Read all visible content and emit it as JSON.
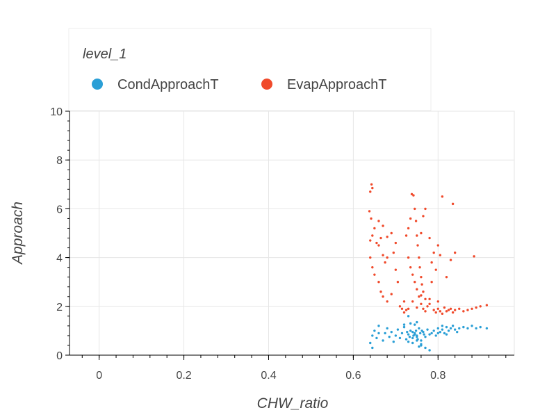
{
  "chart_data": {
    "type": "scatter",
    "title": "",
    "xlabel": "CHW_ratio",
    "ylabel": "Approach",
    "xlim": [
      -0.07,
      0.98
    ],
    "ylim": [
      0,
      10
    ],
    "xticks": [
      0,
      0.2,
      0.4,
      0.6,
      0.8
    ],
    "xtick_labels": [
      "0",
      "0.2",
      "0.4",
      "0.6",
      "0.8"
    ],
    "yticks": [
      0,
      2,
      4,
      6,
      8,
      10
    ],
    "ytick_labels": [
      "0",
      "2",
      "4",
      "6",
      "8",
      "10"
    ],
    "grid": true,
    "legend": {
      "title": "level_1",
      "placement": "top-left-outside"
    },
    "series": [
      {
        "name": "CondApproachT",
        "color": "#2a9fd6",
        "points": [
          [
            0.64,
            0.5
          ],
          [
            0.645,
            0.8
          ],
          [
            0.65,
            1.0
          ],
          [
            0.655,
            0.7
          ],
          [
            0.66,
            0.9
          ],
          [
            0.645,
            0.3
          ],
          [
            0.66,
            1.2
          ],
          [
            0.67,
            0.6
          ],
          [
            0.675,
            0.9
          ],
          [
            0.68,
            1.1
          ],
          [
            0.685,
            0.75
          ],
          [
            0.69,
            0.95
          ],
          [
            0.695,
            0.55
          ],
          [
            0.7,
            0.8
          ],
          [
            0.705,
            1.05
          ],
          [
            0.71,
            0.7
          ],
          [
            0.715,
            0.9
          ],
          [
            0.72,
            1.15
          ],
          [
            0.725,
            0.65
          ],
          [
            0.73,
            0.85
          ],
          [
            0.735,
            1.0
          ],
          [
            0.74,
            0.7
          ],
          [
            0.745,
            0.9
          ],
          [
            0.75,
            0.8
          ],
          [
            0.755,
            1.1
          ],
          [
            0.76,
            0.6
          ],
          [
            0.765,
            0.95
          ],
          [
            0.77,
            0.75
          ],
          [
            0.775,
            1.05
          ],
          [
            0.78,
            0.85
          ],
          [
            0.785,
            0.9
          ],
          [
            0.79,
            1.0
          ],
          [
            0.795,
            0.8
          ],
          [
            0.8,
            1.1
          ],
          [
            0.805,
            0.95
          ],
          [
            0.81,
            1.05
          ],
          [
            0.815,
            0.9
          ],
          [
            0.82,
            1.15
          ],
          [
            0.825,
            1.0
          ],
          [
            0.83,
            1.1
          ],
          [
            0.835,
            1.2
          ],
          [
            0.84,
            1.05
          ],
          [
            0.845,
            0.95
          ],
          [
            0.85,
            1.1
          ],
          [
            0.86,
            1.15
          ],
          [
            0.87,
            1.1
          ],
          [
            0.88,
            1.2
          ],
          [
            0.89,
            1.1
          ],
          [
            0.9,
            1.15
          ],
          [
            0.915,
            1.1
          ],
          [
            0.74,
            0.5
          ],
          [
            0.75,
            0.6
          ],
          [
            0.76,
            0.4
          ],
          [
            0.73,
            0.55
          ],
          [
            0.745,
            1.25
          ],
          [
            0.735,
            1.3
          ],
          [
            0.75,
            1.35
          ],
          [
            0.73,
            1.6
          ],
          [
            0.76,
            0.45
          ],
          [
            0.755,
            0.35
          ],
          [
            0.72,
            1.25
          ],
          [
            0.77,
            0.3
          ],
          [
            0.78,
            0.2
          ],
          [
            0.74,
            0.95
          ],
          [
            0.745,
            0.85
          ],
          [
            0.75,
            0.75
          ],
          [
            0.752,
            0.65
          ],
          [
            0.748,
            1.0
          ],
          [
            0.742,
            0.8
          ],
          [
            0.758,
            0.9
          ],
          [
            0.762,
            1.0
          ],
          [
            0.767,
            0.85
          ],
          [
            0.733,
            0.75
          ],
          [
            0.727,
            0.95
          ],
          [
            0.81,
            1.2
          ],
          [
            0.82,
            0.85
          ],
          [
            0.8,
            0.9
          ]
        ]
      },
      {
        "name": "EvapApproachT",
        "color": "#f04a2b",
        "points": [
          [
            0.643,
            7.0
          ],
          [
            0.645,
            6.85
          ],
          [
            0.64,
            6.7
          ],
          [
            0.638,
            5.9
          ],
          [
            0.642,
            5.6
          ],
          [
            0.65,
            5.2
          ],
          [
            0.645,
            4.9
          ],
          [
            0.64,
            4.7
          ],
          [
            0.655,
            4.6
          ],
          [
            0.66,
            4.5
          ],
          [
            0.665,
            4.8
          ],
          [
            0.67,
            4.1
          ],
          [
            0.675,
            3.8
          ],
          [
            0.68,
            4.0
          ],
          [
            0.64,
            4.0
          ],
          [
            0.645,
            3.6
          ],
          [
            0.65,
            3.3
          ],
          [
            0.66,
            3.0
          ],
          [
            0.665,
            2.6
          ],
          [
            0.67,
            2.4
          ],
          [
            0.68,
            2.2
          ],
          [
            0.69,
            2.5
          ],
          [
            0.695,
            4.2
          ],
          [
            0.7,
            3.5
          ],
          [
            0.705,
            3.0
          ],
          [
            0.71,
            2.0
          ],
          [
            0.715,
            1.9
          ],
          [
            0.72,
            2.2
          ],
          [
            0.725,
            4.9
          ],
          [
            0.73,
            5.2
          ],
          [
            0.735,
            5.6
          ],
          [
            0.738,
            6.6
          ],
          [
            0.742,
            6.55
          ],
          [
            0.745,
            6.0
          ],
          [
            0.748,
            5.5
          ],
          [
            0.75,
            4.9
          ],
          [
            0.752,
            4.5
          ],
          [
            0.755,
            4.0
          ],
          [
            0.757,
            3.6
          ],
          [
            0.76,
            3.2
          ],
          [
            0.762,
            2.9
          ],
          [
            0.765,
            2.6
          ],
          [
            0.77,
            2.3
          ],
          [
            0.73,
            4.0
          ],
          [
            0.735,
            3.6
          ],
          [
            0.74,
            3.3
          ],
          [
            0.745,
            3.0
          ],
          [
            0.75,
            2.7
          ],
          [
            0.755,
            2.4
          ],
          [
            0.76,
            2.1
          ],
          [
            0.765,
            1.9
          ],
          [
            0.77,
            1.8
          ],
          [
            0.775,
            2.0
          ],
          [
            0.78,
            2.3
          ],
          [
            0.785,
            3.0
          ],
          [
            0.79,
            1.85
          ],
          [
            0.795,
            1.75
          ],
          [
            0.8,
            1.9
          ],
          [
            0.805,
            1.8
          ],
          [
            0.81,
            1.7
          ],
          [
            0.815,
            1.95
          ],
          [
            0.82,
            1.8
          ],
          [
            0.825,
            1.85
          ],
          [
            0.83,
            1.9
          ],
          [
            0.835,
            1.75
          ],
          [
            0.84,
            1.85
          ],
          [
            0.85,
            1.9
          ],
          [
            0.86,
            1.8
          ],
          [
            0.87,
            1.85
          ],
          [
            0.88,
            1.9
          ],
          [
            0.89,
            1.95
          ],
          [
            0.9,
            2.0
          ],
          [
            0.915,
            2.05
          ],
          [
            0.81,
            6.5
          ],
          [
            0.835,
            6.2
          ],
          [
            0.885,
            4.05
          ],
          [
            0.84,
            4.2
          ],
          [
            0.83,
            3.9
          ],
          [
            0.82,
            3.2
          ],
          [
            0.77,
            6.0
          ],
          [
            0.765,
            5.7
          ],
          [
            0.76,
            5.0
          ],
          [
            0.79,
            4.2
          ],
          [
            0.795,
            3.5
          ],
          [
            0.8,
            2.2
          ],
          [
            0.78,
            2.1
          ],
          [
            0.72,
            1.75
          ],
          [
            0.725,
            1.85
          ],
          [
            0.73,
            1.9
          ],
          [
            0.74,
            2.2
          ],
          [
            0.76,
            2.45
          ],
          [
            0.75,
            1.95
          ],
          [
            0.8,
            4.5
          ],
          [
            0.805,
            4.1
          ],
          [
            0.78,
            4.8
          ],
          [
            0.785,
            3.8
          ],
          [
            0.7,
            4.6
          ],
          [
            0.69,
            5.0
          ],
          [
            0.66,
            5.5
          ],
          [
            0.67,
            5.3
          ],
          [
            0.68,
            4.85
          ]
        ]
      }
    ]
  }
}
